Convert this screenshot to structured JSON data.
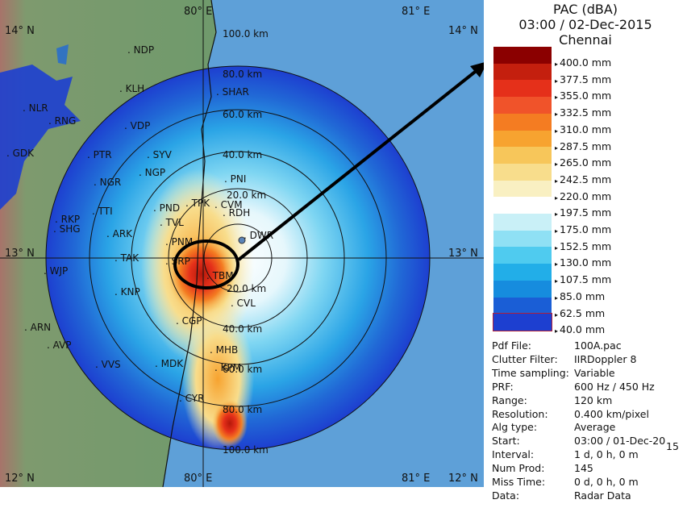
{
  "header": {
    "product": "PAC (dBA)",
    "datetime": "03:00 / 02-Dec-2015",
    "station": "Chennai"
  },
  "legend": {
    "levels": [
      {
        "label": "400.0 mm",
        "color": "#8b0000"
      },
      {
        "label": "377.5 mm",
        "color": "#c41f0e"
      },
      {
        "label": "355.0 mm",
        "color": "#e5301a"
      },
      {
        "label": "332.5 mm",
        "color": "#f0532a"
      },
      {
        "label": "310.0 mm",
        "color": "#f47c22"
      },
      {
        "label": "287.5 mm",
        "color": "#f7a330"
      },
      {
        "label": "265.0 mm",
        "color": "#f7c65a"
      },
      {
        "label": "242.5 mm",
        "color": "#f8dd8c"
      },
      {
        "label": "220.0 mm",
        "color": "#f9f0c2"
      },
      {
        "label": "197.5 mm",
        "color": "#ffffff"
      },
      {
        "label": "175.0 mm",
        "color": "#c9f0f7"
      },
      {
        "label": "152.5 mm",
        "color": "#8fe0f4"
      },
      {
        "label": "130.0 mm",
        "color": "#4fcbef"
      },
      {
        "label": "107.5 mm",
        "color": "#22aee8"
      },
      {
        "label": "85.0 mm",
        "color": "#168cde"
      },
      {
        "label": "62.5 mm",
        "color": "#1a5ed6"
      },
      {
        "label": "40.0 mm",
        "color": "#1d3fd0"
      }
    ]
  },
  "info": [
    {
      "key": "Pdf File:",
      "value": "100A.pac"
    },
    {
      "key": "Clutter Filter:",
      "value": "IIRDoppler 8"
    },
    {
      "key": "Time sampling:",
      "value": "Variable"
    },
    {
      "key": "PRF:",
      "value": "600 Hz / 450 Hz"
    },
    {
      "key": "Range:",
      "value": "120 km"
    },
    {
      "key": "Resolution:",
      "value": "0.400 km/pixel"
    },
    {
      "key": "Alg type:",
      "value": "Average"
    },
    {
      "key": "Start:",
      "value": "03:00 / 01-Dec-20",
      "suffix": "15"
    },
    {
      "key": "Interval:",
      "value": "1 d, 0 h, 0 m"
    },
    {
      "key": "Num Prod:",
      "value": "145"
    },
    {
      "key": "Miss Time:",
      "value": "0 d, 0 h, 0 m"
    },
    {
      "key": "Data:",
      "value": "Radar Data"
    }
  ],
  "map": {
    "grid_labels": {
      "lon_80": "80° E",
      "lon_81": "81° E",
      "lat_14": "14° N",
      "lat_13": "13° N",
      "lat_12": "12° N"
    },
    "range_rings": [
      "20.0 km",
      "40.0 km",
      "60.0 km",
      "80.0 km",
      "100.0 km"
    ],
    "places": [
      "NDP",
      "KLH",
      "VDP",
      "SHAR",
      "PTR",
      "NGR",
      "SYV",
      "NGP",
      "PNI",
      "TTI",
      "PND",
      "TPK",
      "CVM",
      "RDH",
      "TVL",
      "RKP",
      "SHG",
      "ARK",
      "PNM",
      "DWR",
      "TAK",
      "SRP",
      "TBM",
      "KNP",
      "CVL",
      "WJP",
      "CGP",
      "ARN",
      "AVP",
      "MHB",
      "VVS",
      "MDK",
      "KPM",
      "GDK",
      "CYR",
      "NLR",
      "RNG"
    ]
  },
  "colors": {
    "land": "#6f9a6c",
    "sea": "#5ea0d8",
    "ring": "#111111",
    "highlight": "#000000"
  }
}
